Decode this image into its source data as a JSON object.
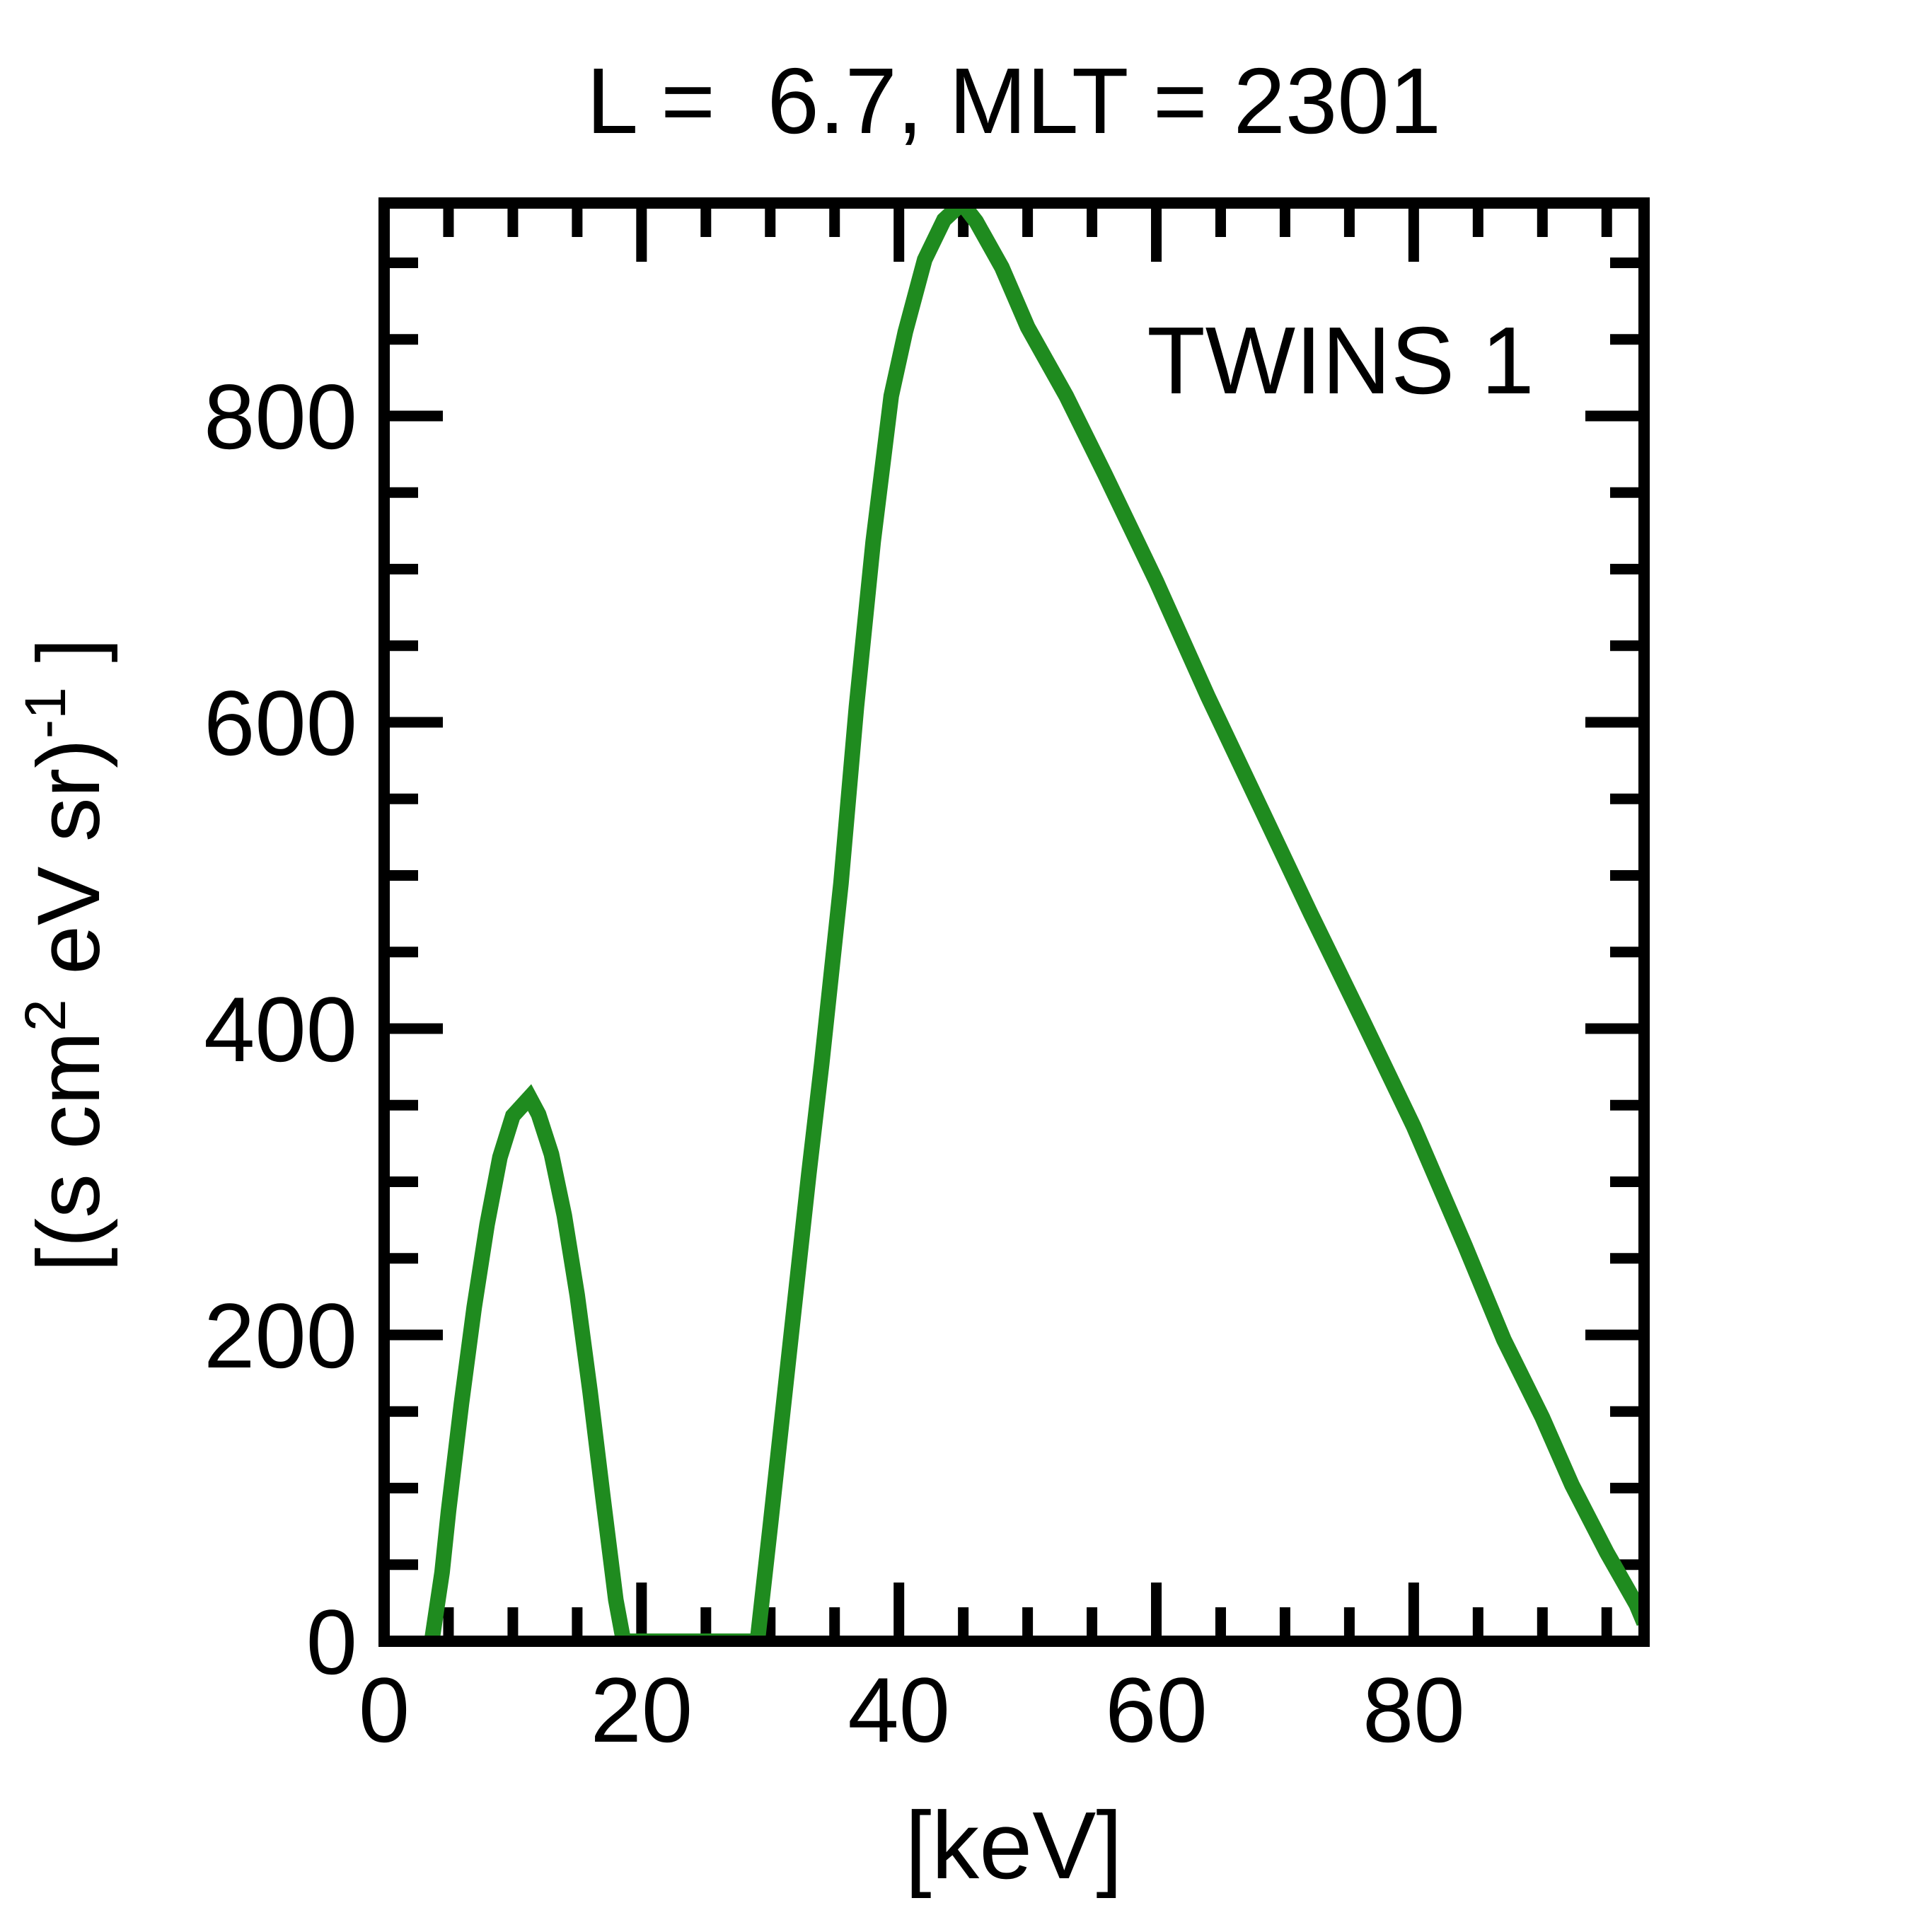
{
  "title": "L =  6.7, MLT = 2301",
  "legend": {
    "label": "TWINS 1",
    "color": "#1f8b1f"
  },
  "axes": {
    "xlabel": "[keV]",
    "ylabel_plain": "[(s cm2 eV sr)-1 ]",
    "ylabel_parts": [
      {
        "t": "[(s cm"
      },
      {
        "sup": "2"
      },
      {
        "t": " eV sr)"
      },
      {
        "sup": "-1"
      },
      {
        "t": " ]"
      }
    ],
    "x_major_ticks": [
      0,
      20,
      40,
      60,
      80
    ],
    "x_major_labels": [
      "0",
      "20",
      "40",
      "60",
      "80"
    ],
    "x_minor_step": 5,
    "y_major_ticks": [
      0,
      200,
      400,
      600,
      800
    ],
    "y_major_labels": [
      "0",
      "200",
      "400",
      "600",
      "800"
    ],
    "y_minor_step": 50,
    "xlim": [
      0,
      97.9
    ],
    "ylim": [
      0,
      939
    ],
    "frame_color": "#000000"
  },
  "chart_data": {
    "type": "line",
    "title": "L =  6.7, MLT = 2301",
    "xlabel": "[keV]",
    "ylabel": "[(s cm2 eV sr)-1 ]",
    "xlim": [
      0,
      97.9
    ],
    "ylim": [
      0,
      939
    ],
    "grid": false,
    "legend_position": "upper right",
    "series": [
      {
        "name": "TWINS 1",
        "color": "#1f8b1f",
        "points": [
          [
            3.7,
            0
          ],
          [
            4.5,
            45
          ],
          [
            5,
            85
          ],
          [
            6,
            155
          ],
          [
            7,
            218
          ],
          [
            8,
            272
          ],
          [
            9,
            316
          ],
          [
            10,
            343
          ],
          [
            11.3,
            355
          ],
          [
            12,
            344
          ],
          [
            13,
            318
          ],
          [
            14,
            278
          ],
          [
            15,
            226
          ],
          [
            16,
            163
          ],
          [
            17,
            94
          ],
          [
            18,
            27
          ],
          [
            18.6,
            0
          ],
          [
            29.0,
            0
          ],
          [
            30,
            75
          ],
          [
            31.5,
            190
          ],
          [
            33,
            305
          ],
          [
            34,
            377
          ],
          [
            35.5,
            495
          ],
          [
            36.7,
            610
          ],
          [
            38,
            718
          ],
          [
            39.4,
            813
          ],
          [
            40.5,
            855
          ],
          [
            42,
            902
          ],
          [
            43.5,
            928
          ],
          [
            44.9,
            939
          ],
          [
            46,
            927
          ],
          [
            48,
            897
          ],
          [
            50,
            858
          ],
          [
            53,
            813
          ],
          [
            56,
            762
          ],
          [
            60,
            692
          ],
          [
            64,
            617
          ],
          [
            68,
            546
          ],
          [
            72,
            475
          ],
          [
            76,
            406
          ],
          [
            80,
            336
          ],
          [
            84,
            258
          ],
          [
            87,
            197
          ],
          [
            90,
            146
          ],
          [
            92.3,
            102
          ],
          [
            95,
            58
          ],
          [
            97.3,
            24
          ],
          [
            97.9,
            12
          ]
        ]
      }
    ]
  }
}
